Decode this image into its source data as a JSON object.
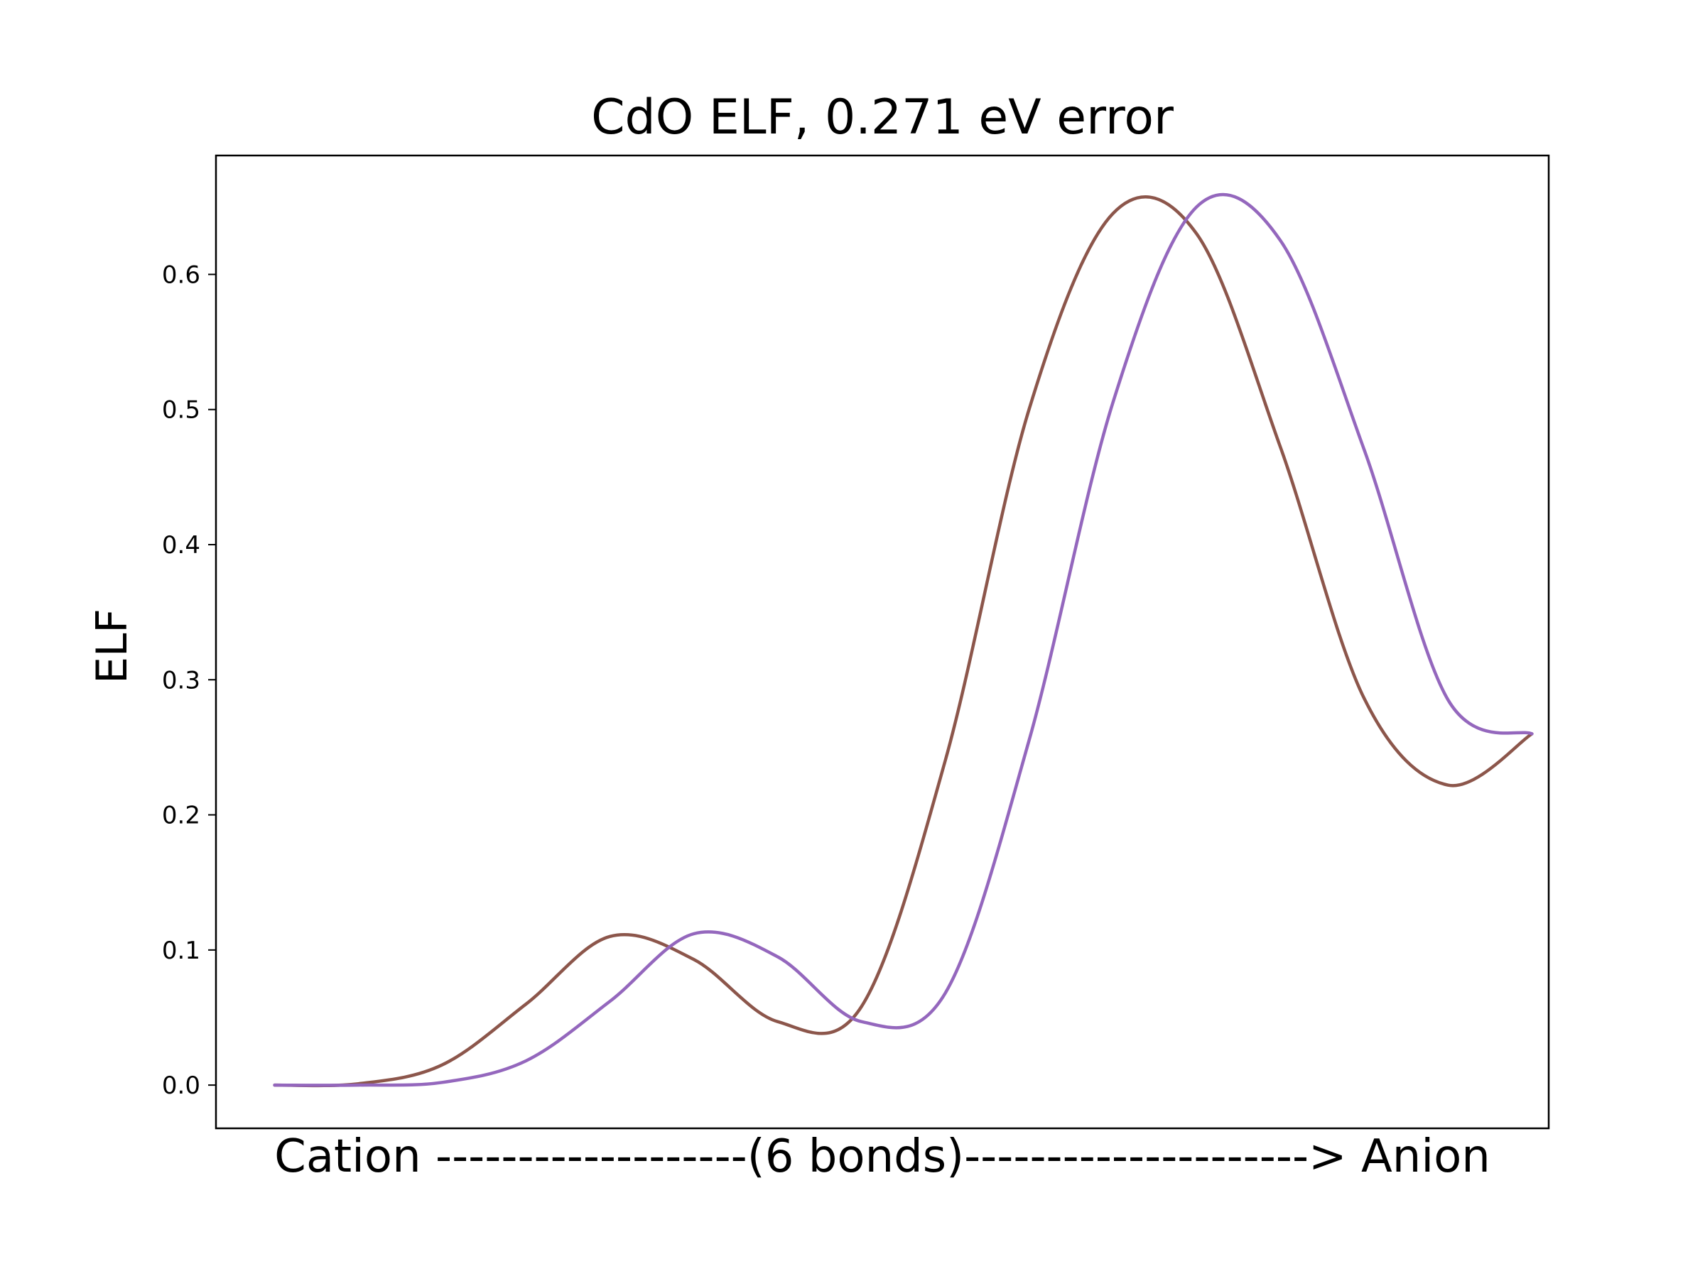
{
  "chart_data": {
    "type": "line",
    "title": "CdO ELF, 0.271 eV error",
    "xlabel": "Cation -------------------(6 bonds)---------------------> Anion",
    "ylabel": "ELF",
    "ylim": [
      -0.032,
      0.688
    ],
    "yticks": [
      0.0,
      0.1,
      0.2,
      0.3,
      0.4,
      0.5,
      0.6
    ],
    "ytick_labels": [
      "0.0",
      "0.1",
      "0.2",
      "0.3",
      "0.4",
      "0.5",
      "0.6"
    ],
    "xlim": [
      -3.5,
      76.0
    ],
    "grid": false,
    "legend": "none",
    "series": [
      {
        "color": "#8c564b",
        "x": [
          0,
          5,
          10,
          15,
          20,
          25,
          30,
          35,
          40,
          45,
          50,
          55,
          60,
          65,
          70,
          75
        ],
        "y": [
          0.0,
          0.001,
          0.015,
          0.06,
          0.11,
          0.093,
          0.047,
          0.058,
          0.24,
          0.5,
          0.645,
          0.63,
          0.472,
          0.286,
          0.222,
          0.26
        ]
      },
      {
        "color": "#9467bd",
        "x": [
          0,
          5,
          10,
          15,
          20,
          25,
          30,
          35,
          40,
          45,
          50,
          55,
          60,
          65,
          70,
          75
        ],
        "y": [
          0.0,
          0.0,
          0.002,
          0.018,
          0.062,
          0.112,
          0.095,
          0.047,
          0.068,
          0.255,
          0.505,
          0.65,
          0.625,
          0.47,
          0.285,
          0.26
        ]
      }
    ]
  }
}
